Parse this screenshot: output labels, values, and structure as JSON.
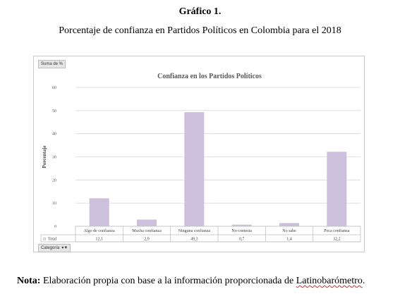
{
  "figure": {
    "label": "Gráfico 1.",
    "caption": "Porcentaje de confianza en Partidos Políticos en Colombia para el 2018"
  },
  "pivot": {
    "value_field_button": "Suma de %",
    "category_field_button": "Categoría",
    "total_row_label": "Total",
    "total_row_icon": "collapse-square-icon",
    "filter_icon": "filter-dropdown-icon"
  },
  "chart_data": {
    "type": "bar",
    "title": "Confianza en los Partidos Políticos",
    "xlabel": "",
    "ylabel": "Porcentaje",
    "ylim": [
      0,
      60
    ],
    "yticks": [
      0,
      10,
      20,
      30,
      40,
      50,
      60
    ],
    "grid": true,
    "bar_color": "#ccc0dc",
    "categories": [
      "Algo de confianza",
      "Mucha confianza",
      "Ninguna confianza",
      "No contesta",
      "No sabe",
      "Poca confianza"
    ],
    "values": [
      12.1,
      2.9,
      49.3,
      0.7,
      1.4,
      32.2
    ],
    "value_labels": [
      "12,1",
      "2,9",
      "49,3",
      "0,7",
      "1,4",
      "32,2"
    ]
  },
  "note": {
    "lead": "Nota:",
    "text": " Elaboración propia con base a la información proporcionada de ",
    "source": "Latinobarómetro",
    "end": "."
  }
}
